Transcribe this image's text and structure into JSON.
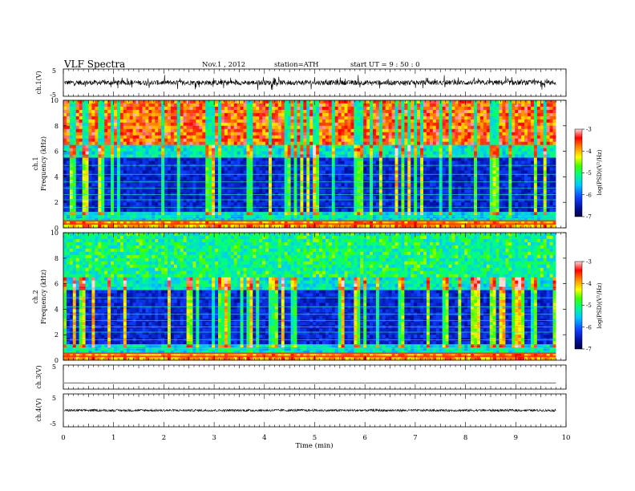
{
  "header": {
    "title": "VLF Spectra",
    "date": "Nov.1  , 2012",
    "station": "station=ATH",
    "start": "start  UT  =  9 : 50 : 0"
  },
  "chart_data": [
    {
      "type": "line",
      "name": "ch1-waveform",
      "ylabel": "ch.1(V)",
      "ylim": [
        -5,
        5
      ],
      "ticks": [
        "5",
        "-5"
      ],
      "baseline": 0.0,
      "x_end": 9.8
    },
    {
      "type": "heatmap",
      "name": "ch1-spectrogram",
      "ylabel_top": "ch.1",
      "ylabel": "Frequency  (kHz)",
      "ylim": [
        0,
        10
      ],
      "yticks": [
        "0",
        "2",
        "4",
        "6",
        "8",
        "10"
      ],
      "colorbar": {
        "label": "log(PSD)(V²/Hz)",
        "ticks": [
          "-3",
          "-4",
          "-5",
          "-6",
          "-7"
        ],
        "range": [
          -7,
          -3
        ]
      }
    },
    {
      "type": "heatmap",
      "name": "ch2-spectrogram",
      "ylabel_top": "ch.2",
      "ylabel": "Frequency  (kHz)",
      "ylim": [
        0,
        10
      ],
      "yticks": [
        "0",
        "2",
        "4",
        "6",
        "8",
        "10"
      ],
      "colorbar": {
        "label": "log(PSD)(V²/Hz)",
        "ticks": [
          "-3",
          "-4",
          "-5",
          "-6",
          "-7"
        ],
        "range": [
          -7,
          -3
        ]
      }
    },
    {
      "type": "line",
      "name": "ch3-waveform",
      "ylabel": "ch.3(V)",
      "ylim": [
        -5,
        5
      ],
      "ticks": [
        "5"
      ],
      "baseline": -2.4,
      "x_end": 9.8
    },
    {
      "type": "line",
      "name": "ch4-waveform",
      "ylabel": "ch.4(V)",
      "ylim": [
        -5,
        5
      ],
      "ticks": [
        "5",
        "-5"
      ],
      "baseline": 0.0,
      "x_end": 9.8
    }
  ],
  "xaxis": {
    "label": "Time  (min)",
    "ticks": [
      "0",
      "1",
      "2",
      "3",
      "4",
      "5",
      "6",
      "7",
      "8",
      "9",
      "10"
    ],
    "xlim": [
      0,
      10
    ]
  },
  "colors": {
    "red": "#ff2a00",
    "yellow": "#e8e400",
    "green": "#25e860",
    "cyan": "#1fd8d0",
    "blue": "#1230d8",
    "navy": "#0a1070"
  }
}
